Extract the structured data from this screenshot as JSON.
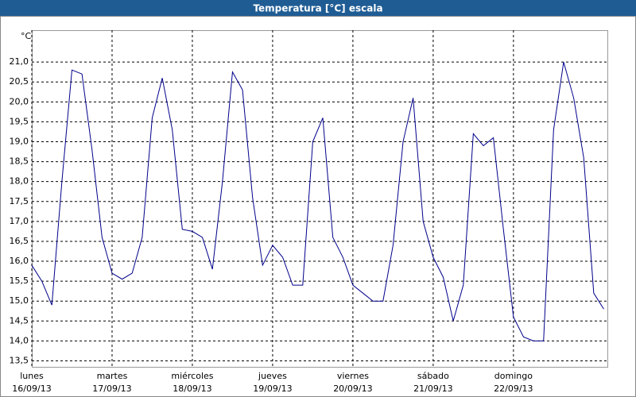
{
  "chart_data": {
    "type": "line",
    "title": "Temperatura [°C] escala",
    "y_label": "°C",
    "x": [
      0,
      0.125,
      0.25,
      0.375,
      0.5,
      0.625,
      0.75,
      0.875,
      1,
      1.125,
      1.25,
      1.375,
      1.5,
      1.625,
      1.75,
      1.875,
      2,
      2.125,
      2.25,
      2.375,
      2.5,
      2.625,
      2.75,
      2.875,
      3,
      3.125,
      3.25,
      3.375,
      3.5,
      3.625,
      3.75,
      3.875,
      4,
      4.125,
      4.25,
      4.375,
      4.5,
      4.625,
      4.75,
      4.875,
      5,
      5.125,
      5.25,
      5.375,
      5.5,
      5.625,
      5.75,
      5.875,
      6,
      6.125,
      6.25,
      6.375,
      6.5,
      6.625,
      6.75,
      6.875,
      7,
      7.125
    ],
    "series": [
      {
        "color": "#00008b",
        "values": [
          15.9,
          15.5,
          14.9,
          18.0,
          20.8,
          20.7,
          18.8,
          16.6,
          15.7,
          15.55,
          15.7,
          16.6,
          19.6,
          20.6,
          19.3,
          16.8,
          16.75,
          16.6,
          15.8,
          18.0,
          20.75,
          20.3,
          17.6,
          15.9,
          16.4,
          16.1,
          15.4,
          15.4,
          19.0,
          19.6,
          16.6,
          16.1,
          15.4,
          15.2,
          15.0,
          15.0,
          16.4,
          19.0,
          20.1,
          17.0,
          16.1,
          15.6,
          14.5,
          15.4,
          19.2,
          18.9,
          19.1,
          16.8,
          14.6,
          14.1,
          14.0,
          14.0,
          19.3,
          21.0,
          20.1,
          18.6,
          15.2,
          14.8
        ]
      }
    ],
    "xlim": [
      0,
      7.17
    ],
    "xticks": [
      {
        "value": 0,
        "label": "lunes",
        "date": "16/09/13"
      },
      {
        "value": 1,
        "label": "martes",
        "date": "17/09/13"
      },
      {
        "value": 2,
        "label": "miércoles",
        "date": "18/09/13"
      },
      {
        "value": 3,
        "label": "jueves",
        "date": "19/09/13"
      },
      {
        "value": 4,
        "label": "viernes",
        "date": "20/09/13"
      },
      {
        "value": 5,
        "label": "sábado",
        "date": "21/09/13"
      },
      {
        "value": 6,
        "label": "domingo",
        "date": "22/09/13"
      }
    ],
    "ylim": [
      13.35,
      21.8
    ],
    "yticks": [
      {
        "value": 13.5,
        "label": "13,5"
      },
      {
        "value": 14,
        "label": "14,0"
      },
      {
        "value": 14.5,
        "label": "14,5"
      },
      {
        "value": 15,
        "label": "15,0"
      },
      {
        "value": 15.5,
        "label": "15,5"
      },
      {
        "value": 16,
        "label": "16,0"
      },
      {
        "value": 16.5,
        "label": "16,5"
      },
      {
        "value": 17,
        "label": "17,0"
      },
      {
        "value": 17.5,
        "label": "17,5"
      },
      {
        "value": 18,
        "label": "18,0"
      },
      {
        "value": 18.5,
        "label": "18,5"
      },
      {
        "value": 19,
        "label": "19,0"
      },
      {
        "value": 19.5,
        "label": "19,5"
      },
      {
        "value": 20,
        "label": "20,0"
      },
      {
        "value": 20.5,
        "label": "20,5"
      },
      {
        "value": 21,
        "label": "21,0"
      }
    ],
    "grid": true
  }
}
